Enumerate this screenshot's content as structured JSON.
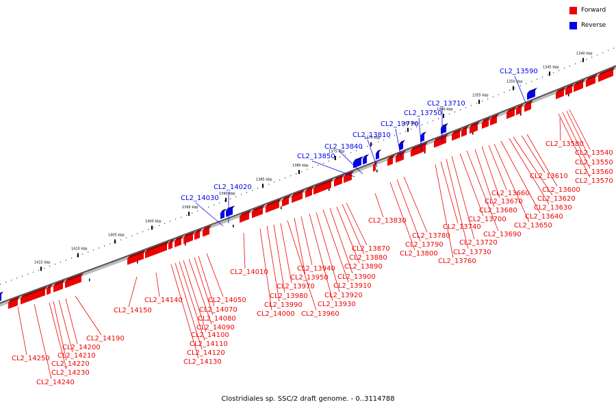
{
  "legend": {
    "forward_label": "Forward",
    "reverse_label": "Reverse",
    "forward_color": "#ee0000",
    "reverse_color": "#0000ee"
  },
  "caption": "Clostridiales sp. SSC/2 draft genome. - 0..3114788",
  "axis": {
    "tick_labels": [
      "1340 kbp",
      "1345 kbp",
      "1350 kbp",
      "1355 kbp",
      "1360 kbp",
      "1365 kbp",
      "1370 kbp",
      "1375 kbp",
      "1380 kbp",
      "1385 kbp",
      "1390 kbp",
      "1395 kbp",
      "1400 kbp",
      "1405 kbp",
      "1410 kbp",
      "1415 kbp"
    ]
  },
  "reverse_genes": [
    "CL2_13590",
    "CL2_13710",
    "CL2_13750",
    "CL2_13770",
    "CL2_13810",
    "CL2_13840",
    "CL2_13850",
    "CL2_14020",
    "CL2_14030"
  ],
  "forward_genes": [
    "CL2_13540",
    "CL2_13550",
    "CL2_13560",
    "CL2_13570",
    "CL2_13580",
    "CL2_13600",
    "CL2_13610",
    "CL2_13620",
    "CL2_13630",
    "CL2_13640",
    "CL2_13650",
    "CL2_13660",
    "CL2_13670",
    "CL2_13680",
    "CL2_13690",
    "CL2_13700",
    "CL2_13720",
    "CL2_13730",
    "CL2_13740",
    "CL2_13760",
    "CL2_13780",
    "CL2_13790",
    "CL2_13800",
    "CL2_13830",
    "CL2_13870",
    "CL2_13880",
    "CL2_13890",
    "CL2_13900",
    "CL2_13910",
    "CL2_13920",
    "CL2_13930",
    "CL2_13940",
    "CL2_13950",
    "CL2_13960",
    "CL2_13970",
    "CL2_13980",
    "CL2_13990",
    "CL2_14000",
    "CL2_14010",
    "CL2_14050",
    "CL2_14070",
    "CL2_14080",
    "CL2_14090",
    "CL2_14100",
    "CL2_14110",
    "CL2_14120",
    "CL2_14130",
    "CL2_14140",
    "CL2_14150",
    "CL2_14190",
    "CL2_14200",
    "CL2_14210",
    "CL2_14220",
    "CL2_14230",
    "CL2_14240",
    "CL2_14250"
  ]
}
